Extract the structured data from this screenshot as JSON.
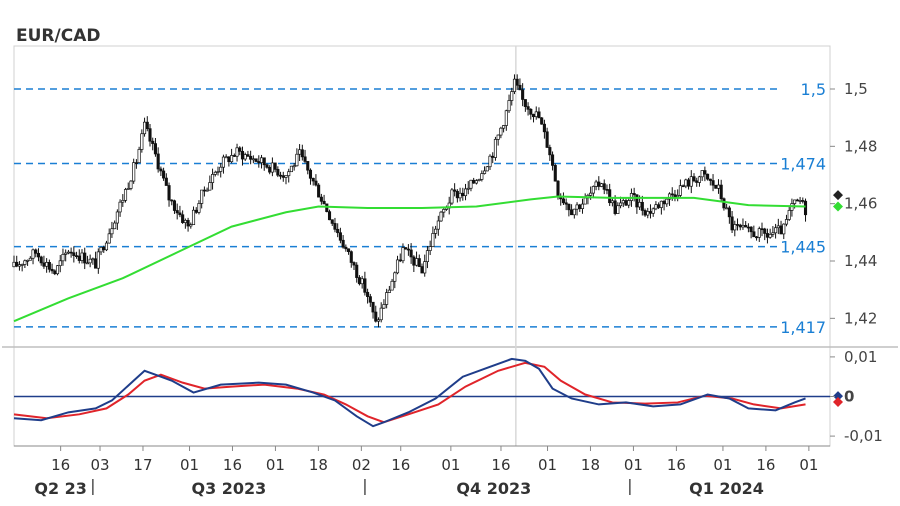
{
  "chart_data": [
    {
      "type": "candlestick",
      "title": "EUR/CAD",
      "ylim": [
        1.41,
        1.515
      ],
      "yticks": [
        1.42,
        1.44,
        1.46,
        1.48,
        1.5
      ],
      "ytick_labels": [
        "1,42",
        "1,44",
        "1,46",
        "1,48",
        "1,5"
      ],
      "levels": [
        {
          "value": 1.5,
          "label": "1,5"
        },
        {
          "value": 1.474,
          "label": "1,474"
        },
        {
          "value": 1.445,
          "label": "1,445"
        },
        {
          "value": 1.417,
          "label": "1,417"
        }
      ],
      "price_path": [
        [
          0,
          1.438
        ],
        [
          8,
          1.443
        ],
        [
          15,
          1.436
        ],
        [
          20,
          1.444
        ],
        [
          26,
          1.441
        ],
        [
          30,
          1.439
        ],
        [
          40,
          1.462
        ],
        [
          45,
          1.475
        ],
        [
          48,
          1.487
        ],
        [
          52,
          1.477
        ],
        [
          57,
          1.462
        ],
        [
          64,
          1.452
        ],
        [
          70,
          1.465
        ],
        [
          76,
          1.474
        ],
        [
          82,
          1.478
        ],
        [
          90,
          1.475
        ],
        [
          100,
          1.47
        ],
        [
          105,
          1.477
        ],
        [
          112,
          1.464
        ],
        [
          118,
          1.452
        ],
        [
          124,
          1.44
        ],
        [
          130,
          1.428
        ],
        [
          133,
          1.418
        ],
        [
          137,
          1.428
        ],
        [
          143,
          1.444
        ],
        [
          150,
          1.437
        ],
        [
          155,
          1.452
        ],
        [
          161,
          1.463
        ],
        [
          166,
          1.464
        ],
        [
          171,
          1.47
        ],
        [
          176,
          1.478
        ],
        [
          181,
          1.492
        ],
        [
          184,
          1.502
        ],
        [
          187,
          1.496
        ],
        [
          193,
          1.49
        ],
        [
          197,
          1.478
        ],
        [
          200,
          1.464
        ],
        [
          205,
          1.458
        ],
        [
          210,
          1.461
        ],
        [
          216,
          1.468
        ],
        [
          221,
          1.458
        ],
        [
          227,
          1.462
        ],
        [
          233,
          1.457
        ],
        [
          240,
          1.462
        ],
        [
          247,
          1.467
        ],
        [
          253,
          1.47
        ],
        [
          259,
          1.465
        ],
        [
          264,
          1.452
        ],
        [
          270,
          1.45
        ],
        [
          277,
          1.449
        ],
        [
          283,
          1.451
        ],
        [
          286,
          1.459
        ],
        [
          289,
          1.461
        ],
        [
          291,
          1.458
        ]
      ],
      "sma_path": [
        [
          0,
          1.419
        ],
        [
          20,
          1.427
        ],
        [
          40,
          1.434
        ],
        [
          60,
          1.443
        ],
        [
          80,
          1.452
        ],
        [
          100,
          1.457
        ],
        [
          112,
          1.459
        ],
        [
          130,
          1.4585
        ],
        [
          150,
          1.4585
        ],
        [
          170,
          1.459
        ],
        [
          190,
          1.4615
        ],
        [
          200,
          1.4625
        ],
        [
          220,
          1.462
        ],
        [
          250,
          1.462
        ],
        [
          270,
          1.4595
        ],
        [
          291,
          1.459
        ]
      ],
      "last_markers": [
        {
          "color": "#222222",
          "value": 1.463
        },
        {
          "color": "#33dd33",
          "value": 1.459
        }
      ]
    },
    {
      "type": "line",
      "ylim": [
        -0.0125,
        0.0125
      ],
      "yticks": [
        0.01,
        0.0,
        -0.01
      ],
      "ytick_labels": [
        "0,01",
        "0",
        "-0,01"
      ],
      "zero_label": "0",
      "series": [
        {
          "color": "#1f3d8a",
          "values": [
            [
              0,
              -0.0055
            ],
            [
              10,
              -0.006
            ],
            [
              20,
              -0.004
            ],
            [
              30,
              -0.003
            ],
            [
              36,
              -0.001
            ],
            [
              44,
              0.004
            ],
            [
              48,
              0.0065
            ],
            [
              52,
              0.0055
            ],
            [
              58,
              0.004
            ],
            [
              66,
              0.001
            ],
            [
              76,
              0.003
            ],
            [
              90,
              0.0035
            ],
            [
              100,
              0.003
            ],
            [
              110,
              0.001
            ],
            [
              118,
              -0.001
            ],
            [
              126,
              -0.005
            ],
            [
              132,
              -0.0075
            ],
            [
              136,
              -0.0065
            ],
            [
              145,
              -0.004
            ],
            [
              155,
              -0.0005
            ],
            [
              165,
              0.005
            ],
            [
              175,
              0.0075
            ],
            [
              183,
              0.0095
            ],
            [
              188,
              0.009
            ],
            [
              193,
              0.007
            ],
            [
              198,
              0.002
            ],
            [
              205,
              -0.0005
            ],
            [
              215,
              -0.002
            ],
            [
              225,
              -0.0015
            ],
            [
              235,
              -0.0025
            ],
            [
              245,
              -0.002
            ],
            [
              255,
              0.0005
            ],
            [
              263,
              -0.0005
            ],
            [
              270,
              -0.003
            ],
            [
              280,
              -0.0035
            ],
            [
              287,
              -0.0015
            ],
            [
              291,
              -0.0005
            ]
          ]
        },
        {
          "color": "#e0242a",
          "values": [
            [
              0,
              -0.0045
            ],
            [
              12,
              -0.0055
            ],
            [
              24,
              -0.0045
            ],
            [
              34,
              -0.003
            ],
            [
              42,
              0.0005
            ],
            [
              48,
              0.004
            ],
            [
              54,
              0.0055
            ],
            [
              62,
              0.0035
            ],
            [
              70,
              0.002
            ],
            [
              80,
              0.0025
            ],
            [
              92,
              0.003
            ],
            [
              104,
              0.002
            ],
            [
              114,
              0.0005
            ],
            [
              122,
              -0.002
            ],
            [
              130,
              -0.005
            ],
            [
              136,
              -0.0065
            ],
            [
              145,
              -0.0045
            ],
            [
              156,
              -0.002
            ],
            [
              166,
              0.0025
            ],
            [
              178,
              0.0065
            ],
            [
              188,
              0.0085
            ],
            [
              195,
              0.0075
            ],
            [
              201,
              0.004
            ],
            [
              210,
              0.0005
            ],
            [
              220,
              -0.0015
            ],
            [
              232,
              -0.0018
            ],
            [
              244,
              -0.0015
            ],
            [
              254,
              0.0002
            ],
            [
              264,
              -0.0005
            ],
            [
              272,
              -0.002
            ],
            [
              282,
              -0.003
            ],
            [
              291,
              -0.002
            ]
          ]
        }
      ],
      "last_markers": [
        {
          "color": "#1f3d8a",
          "value": 0.0001
        },
        {
          "color": "#e0242a",
          "value": -0.0014
        }
      ]
    }
  ],
  "x_axis": {
    "ticks": [
      {
        "pos": 8,
        "label": "16"
      },
      {
        "pos": 19,
        "label": "03"
      },
      {
        "pos": 31,
        "label": "17"
      },
      {
        "pos": 44,
        "label": "01"
      },
      {
        "pos": 56,
        "label": "16"
      },
      {
        "pos": 68,
        "label": "01"
      },
      {
        "pos": 80,
        "label": "18"
      },
      {
        "pos": 92,
        "label": "02"
      },
      {
        "pos": 103,
        "label": "16"
      },
      {
        "pos": 117,
        "label": "01"
      },
      {
        "pos": 131,
        "label": "16"
      },
      {
        "pos": 144,
        "label": "01"
      },
      {
        "pos": 156,
        "label": "18"
      },
      {
        "pos": 168,
        "label": "01"
      },
      {
        "pos": 180,
        "label": "16"
      },
      {
        "pos": 193,
        "label": "01"
      },
      {
        "pos": 205,
        "label": "16"
      },
      {
        "pos": 217,
        "label": "01"
      }
    ],
    "quarters": [
      {
        "label": "Q2 23",
        "pos": 8,
        "sep": 17
      },
      {
        "label": "Q3 2023",
        "pos": 55,
        "sep": 93
      },
      {
        "label": "Q4 2023",
        "pos": 129,
        "sep": 167
      },
      {
        "label": "Q1 2024",
        "pos": 194,
        "sep": null
      }
    ]
  }
}
